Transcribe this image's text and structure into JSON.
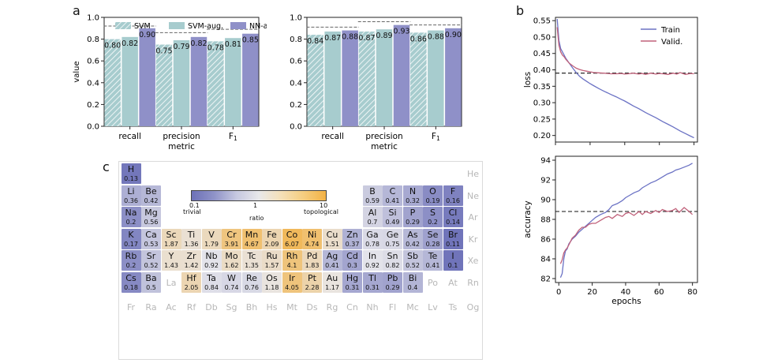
{
  "panel_labels": {
    "a": "a",
    "b": "b",
    "c": "c"
  },
  "colors": {
    "svm": "#a7ccce",
    "svm_aug": "#a7ccce",
    "nn_aug": "#8f90c8",
    "train": "#6b72c4",
    "valid": "#c0617a"
  },
  "chart_data": [
    {
      "type": "bar",
      "panel": "a-left",
      "xlabel": "metric",
      "ylabel": "value",
      "ylim": [
        0.0,
        1.0
      ],
      "yticks": [
        "0.0",
        "0.2",
        "0.4",
        "0.6",
        "0.8",
        "1.0"
      ],
      "categories": [
        "recall",
        "precision",
        "F1"
      ],
      "legend": [
        "SVM",
        "SVM-aug.",
        "NN-aug."
      ],
      "series": [
        {
          "name": "SVM",
          "values": [
            0.8,
            0.75,
            0.78
          ],
          "labels": [
            "0.80",
            "0.75",
            "0.78"
          ]
        },
        {
          "name": "SVM-aug.",
          "values": [
            0.82,
            0.79,
            0.81
          ],
          "labels": [
            "0.82",
            "0.79",
            "0.81"
          ]
        },
        {
          "name": "NN-aug.",
          "values": [
            0.9,
            0.82,
            0.85
          ],
          "labels": [
            "0.90",
            "0.82",
            "0.85"
          ]
        }
      ],
      "reference": [
        0.92,
        0.86,
        0.89
      ]
    },
    {
      "type": "bar",
      "panel": "a-right",
      "xlabel": "metric",
      "ylabel": "",
      "ylim": [
        0.0,
        1.0
      ],
      "yticks": [
        "0.0",
        "0.2",
        "0.4",
        "0.6",
        "0.8",
        "1.0"
      ],
      "categories": [
        "recall",
        "precision",
        "F1"
      ],
      "series": [
        {
          "name": "SVM",
          "values": [
            0.84,
            0.87,
            0.86
          ],
          "labels": [
            "0.84",
            "0.87",
            "0.86"
          ]
        },
        {
          "name": "SVM-aug.",
          "values": [
            0.87,
            0.89,
            0.88
          ],
          "labels": [
            "0.87",
            "0.89",
            "0.88"
          ]
        },
        {
          "name": "NN-aug.",
          "values": [
            0.88,
            0.93,
            0.9
          ],
          "labels": [
            "0.88",
            "0.93",
            "0.90"
          ]
        }
      ],
      "reference": [
        0.91,
        0.96,
        0.93
      ]
    },
    {
      "type": "line",
      "panel": "b-top",
      "xlabel": "",
      "ylabel": "loss",
      "xlim": [
        0,
        82
      ],
      "ylim": [
        0.18,
        0.56
      ],
      "yticks": [
        "0.20",
        "0.25",
        "0.30",
        "0.35",
        "0.40",
        "0.45",
        "0.50",
        "0.55"
      ],
      "legend": [
        "Train",
        "Valid."
      ],
      "reference_y": 0.39,
      "x": [
        1,
        2,
        3,
        4,
        5,
        6,
        8,
        10,
        12,
        14,
        16,
        18,
        20,
        22,
        25,
        28,
        30,
        32,
        35,
        38,
        40,
        42,
        45,
        48,
        50,
        52,
        55,
        58,
        60,
        62,
        65,
        68,
        70,
        72,
        75,
        78,
        80
      ],
      "series": [
        {
          "name": "Train",
          "values": [
            0.555,
            0.49,
            0.465,
            0.455,
            0.445,
            0.435,
            0.42,
            0.405,
            0.392,
            0.38,
            0.372,
            0.365,
            0.358,
            0.352,
            0.343,
            0.335,
            0.33,
            0.325,
            0.318,
            0.31,
            0.305,
            0.299,
            0.29,
            0.282,
            0.276,
            0.27,
            0.262,
            0.254,
            0.248,
            0.242,
            0.234,
            0.226,
            0.22,
            0.214,
            0.206,
            0.198,
            0.193
          ]
        },
        {
          "name": "Valid.",
          "values": [
            0.53,
            0.475,
            0.455,
            0.445,
            0.44,
            0.432,
            0.42,
            0.412,
            0.405,
            0.401,
            0.398,
            0.396,
            0.394,
            0.392,
            0.391,
            0.39,
            0.389,
            0.388,
            0.388,
            0.389,
            0.387,
            0.388,
            0.39,
            0.387,
            0.389,
            0.386,
            0.39,
            0.387,
            0.389,
            0.388,
            0.386,
            0.39,
            0.387,
            0.392,
            0.386,
            0.389,
            0.388
          ]
        }
      ]
    },
    {
      "type": "line",
      "panel": "b-bottom",
      "xlabel": "epochs",
      "ylabel": "accuracy",
      "xlim": [
        -2,
        83
      ],
      "ylim": [
        81.6,
        94.4
      ],
      "xticks": [
        "0",
        "20",
        "40",
        "60",
        "80"
      ],
      "yticks": [
        "82",
        "84",
        "86",
        "88",
        "90",
        "92",
        "94"
      ],
      "reference_y": 88.8,
      "x": [
        1,
        2,
        3,
        4,
        5,
        6,
        8,
        10,
        12,
        14,
        16,
        18,
        20,
        22,
        25,
        28,
        30,
        32,
        35,
        38,
        40,
        42,
        45,
        48,
        50,
        52,
        55,
        58,
        60,
        62,
        65,
        68,
        70,
        72,
        75,
        78,
        80
      ],
      "series": [
        {
          "name": "Train",
          "values": [
            82.1,
            82.5,
            84.0,
            84.8,
            85.0,
            85.5,
            86.0,
            86.3,
            86.7,
            87.0,
            87.3,
            87.6,
            87.9,
            88.2,
            88.5,
            88.7,
            89.0,
            89.4,
            89.6,
            89.9,
            90.2,
            90.4,
            90.7,
            90.9,
            91.2,
            91.4,
            91.7,
            91.9,
            92.1,
            92.3,
            92.6,
            92.8,
            93.0,
            93.1,
            93.3,
            93.5,
            93.7
          ]
        },
        {
          "name": "Valid.",
          "values": [
            83.5,
            83.9,
            84.6,
            84.9,
            85.1,
            85.4,
            86.1,
            86.4,
            86.9,
            87.2,
            87.2,
            87.5,
            87.6,
            87.6,
            87.9,
            88.2,
            88.3,
            88.1,
            88.5,
            88.3,
            88.6,
            88.7,
            88.4,
            88.8,
            88.5,
            88.8,
            88.6,
            88.9,
            88.7,
            89.0,
            88.8,
            88.9,
            89.1,
            88.7,
            89.2,
            88.8,
            88.5
          ]
        }
      ]
    },
    {
      "type": "heatmap",
      "panel": "c",
      "title": "",
      "colorbar": {
        "min": "0.1",
        "mid": "1",
        "max": "10",
        "left_label": "trivial",
        "right_label": "topological",
        "label": "ratio"
      },
      "elements": [
        {
          "s": "H",
          "r": "0.13",
          "row": 1,
          "col": 1
        },
        {
          "s": "He",
          "r": "",
          "row": 1,
          "col": 18
        },
        {
          "s": "Li",
          "r": "0.36",
          "row": 2,
          "col": 1
        },
        {
          "s": "Be",
          "r": "0.42",
          "row": 2,
          "col": 2
        },
        {
          "s": "B",
          "r": "0.59",
          "row": 2,
          "col": 13
        },
        {
          "s": "C",
          "r": "0.41",
          "row": 2,
          "col": 14
        },
        {
          "s": "N",
          "r": "0.32",
          "row": 2,
          "col": 15
        },
        {
          "s": "O",
          "r": "0.19",
          "row": 2,
          "col": 16
        },
        {
          "s": "F",
          "r": "0.16",
          "row": 2,
          "col": 17
        },
        {
          "s": "Ne",
          "r": "",
          "row": 2,
          "col": 18
        },
        {
          "s": "Na",
          "r": "0.2",
          "row": 3,
          "col": 1
        },
        {
          "s": "Mg",
          "r": "0.56",
          "row": 3,
          "col": 2
        },
        {
          "s": "Al",
          "r": "0.7",
          "row": 3,
          "col": 13
        },
        {
          "s": "Si",
          "r": "0.49",
          "row": 3,
          "col": 14
        },
        {
          "s": "P",
          "r": "0.29",
          "row": 3,
          "col": 15
        },
        {
          "s": "S",
          "r": "0.2",
          "row": 3,
          "col": 16
        },
        {
          "s": "Cl",
          "r": "0.14",
          "row": 3,
          "col": 17
        },
        {
          "s": "Ar",
          "r": "",
          "row": 3,
          "col": 18
        },
        {
          "s": "K",
          "r": "0.17",
          "row": 4,
          "col": 1
        },
        {
          "s": "Ca",
          "r": "0.53",
          "row": 4,
          "col": 2
        },
        {
          "s": "Sc",
          "r": "1.87",
          "row": 4,
          "col": 3
        },
        {
          "s": "Ti",
          "r": "1.36",
          "row": 4,
          "col": 4
        },
        {
          "s": "V",
          "r": "1.79",
          "row": 4,
          "col": 5
        },
        {
          "s": "Cr",
          "r": "3.91",
          "row": 4,
          "col": 6
        },
        {
          "s": "Mn",
          "r": "4.67",
          "row": 4,
          "col": 7
        },
        {
          "s": "Fe",
          "r": "2.09",
          "row": 4,
          "col": 8
        },
        {
          "s": "Co",
          "r": "6.07",
          "row": 4,
          "col": 9
        },
        {
          "s": "Ni",
          "r": "4.74",
          "row": 4,
          "col": 10
        },
        {
          "s": "Cu",
          "r": "1.51",
          "row": 4,
          "col": 11
        },
        {
          "s": "Zn",
          "r": "0.37",
          "row": 4,
          "col": 12
        },
        {
          "s": "Ga",
          "r": "0.78",
          "row": 4,
          "col": 13
        },
        {
          "s": "Ge",
          "r": "0.75",
          "row": 4,
          "col": 14
        },
        {
          "s": "As",
          "r": "0.42",
          "row": 4,
          "col": 15
        },
        {
          "s": "Se",
          "r": "0.28",
          "row": 4,
          "col": 16
        },
        {
          "s": "Br",
          "r": "0.11",
          "row": 4,
          "col": 17
        },
        {
          "s": "Kr",
          "r": "",
          "row": 4,
          "col": 18
        },
        {
          "s": "Rb",
          "r": "0.2",
          "row": 5,
          "col": 1
        },
        {
          "s": "Sr",
          "r": "0.52",
          "row": 5,
          "col": 2
        },
        {
          "s": "Y",
          "r": "1.43",
          "row": 5,
          "col": 3
        },
        {
          "s": "Zr",
          "r": "1.42",
          "row": 5,
          "col": 4
        },
        {
          "s": "Nb",
          "r": "0.92",
          "row": 5,
          "col": 5
        },
        {
          "s": "Mo",
          "r": "1.62",
          "row": 5,
          "col": 6
        },
        {
          "s": "Tc",
          "r": "1.35",
          "row": 5,
          "col": 7
        },
        {
          "s": "Ru",
          "r": "1.57",
          "row": 5,
          "col": 8
        },
        {
          "s": "Rh",
          "r": "4.1",
          "row": 5,
          "col": 9
        },
        {
          "s": "Pd",
          "r": "1.83",
          "row": 5,
          "col": 10
        },
        {
          "s": "Ag",
          "r": "0.41",
          "row": 5,
          "col": 11
        },
        {
          "s": "Cd",
          "r": "0.3",
          "row": 5,
          "col": 12
        },
        {
          "s": "In",
          "r": "0.92",
          "row": 5,
          "col": 13
        },
        {
          "s": "Sn",
          "r": "0.82",
          "row": 5,
          "col": 14
        },
        {
          "s": "Sb",
          "r": "0.52",
          "row": 5,
          "col": 15
        },
        {
          "s": "Te",
          "r": "0.41",
          "row": 5,
          "col": 16
        },
        {
          "s": "I",
          "r": "0.1",
          "row": 5,
          "col": 17
        },
        {
          "s": "Xe",
          "r": "",
          "row": 5,
          "col": 18
        },
        {
          "s": "Cs",
          "r": "0.18",
          "row": 6,
          "col": 1
        },
        {
          "s": "Ba",
          "r": "0.5",
          "row": 6,
          "col": 2
        },
        {
          "s": "La",
          "r": "",
          "row": 6,
          "col": 3
        },
        {
          "s": "Hf",
          "r": "2.05",
          "row": 6,
          "col": 4
        },
        {
          "s": "Ta",
          "r": "0.84",
          "row": 6,
          "col": 5
        },
        {
          "s": "W",
          "r": "0.74",
          "row": 6,
          "col": 6
        },
        {
          "s": "Re",
          "r": "0.76",
          "row": 6,
          "col": 7
        },
        {
          "s": "Os",
          "r": "1.18",
          "row": 6,
          "col": 8
        },
        {
          "s": "Ir",
          "r": "4.05",
          "row": 6,
          "col": 9
        },
        {
          "s": "Pt",
          "r": "2.28",
          "row": 6,
          "col": 10
        },
        {
          "s": "Au",
          "r": "1.17",
          "row": 6,
          "col": 11
        },
        {
          "s": "Hg",
          "r": "0.31",
          "row": 6,
          "col": 12
        },
        {
          "s": "Tl",
          "r": "0.31",
          "row": 6,
          "col": 13
        },
        {
          "s": "Pb",
          "r": "0.29",
          "row": 6,
          "col": 14
        },
        {
          "s": "Bi",
          "r": "0.4",
          "row": 6,
          "col": 15
        },
        {
          "s": "Po",
          "r": "",
          "row": 6,
          "col": 16
        },
        {
          "s": "At",
          "r": "",
          "row": 6,
          "col": 17
        },
        {
          "s": "Rn",
          "r": "",
          "row": 6,
          "col": 18
        },
        {
          "s": "Fr",
          "r": "",
          "row": 7,
          "col": 1
        },
        {
          "s": "Ra",
          "r": "",
          "row": 7,
          "col": 2
        },
        {
          "s": "Ac",
          "r": "",
          "row": 7,
          "col": 3
        },
        {
          "s": "Rf",
          "r": "",
          "row": 7,
          "col": 4
        },
        {
          "s": "Db",
          "r": "",
          "row": 7,
          "col": 5
        },
        {
          "s": "Sg",
          "r": "",
          "row": 7,
          "col": 6
        },
        {
          "s": "Bh",
          "r": "",
          "row": 7,
          "col": 7
        },
        {
          "s": "Hs",
          "r": "",
          "row": 7,
          "col": 8
        },
        {
          "s": "Mt",
          "r": "",
          "row": 7,
          "col": 9
        },
        {
          "s": "Ds",
          "r": "",
          "row": 7,
          "col": 10
        },
        {
          "s": "Rg",
          "r": "",
          "row": 7,
          "col": 11
        },
        {
          "s": "Cn",
          "r": "",
          "row": 7,
          "col": 12
        },
        {
          "s": "Nh",
          "r": "",
          "row": 7,
          "col": 13
        },
        {
          "s": "Fl",
          "r": "",
          "row": 7,
          "col": 14
        },
        {
          "s": "Mc",
          "r": "",
          "row": 7,
          "col": 15
        },
        {
          "s": "Lv",
          "r": "",
          "row": 7,
          "col": 16
        },
        {
          "s": "Ts",
          "r": "",
          "row": 7,
          "col": 17
        },
        {
          "s": "Og",
          "r": "",
          "row": 7,
          "col": 18
        }
      ]
    }
  ]
}
